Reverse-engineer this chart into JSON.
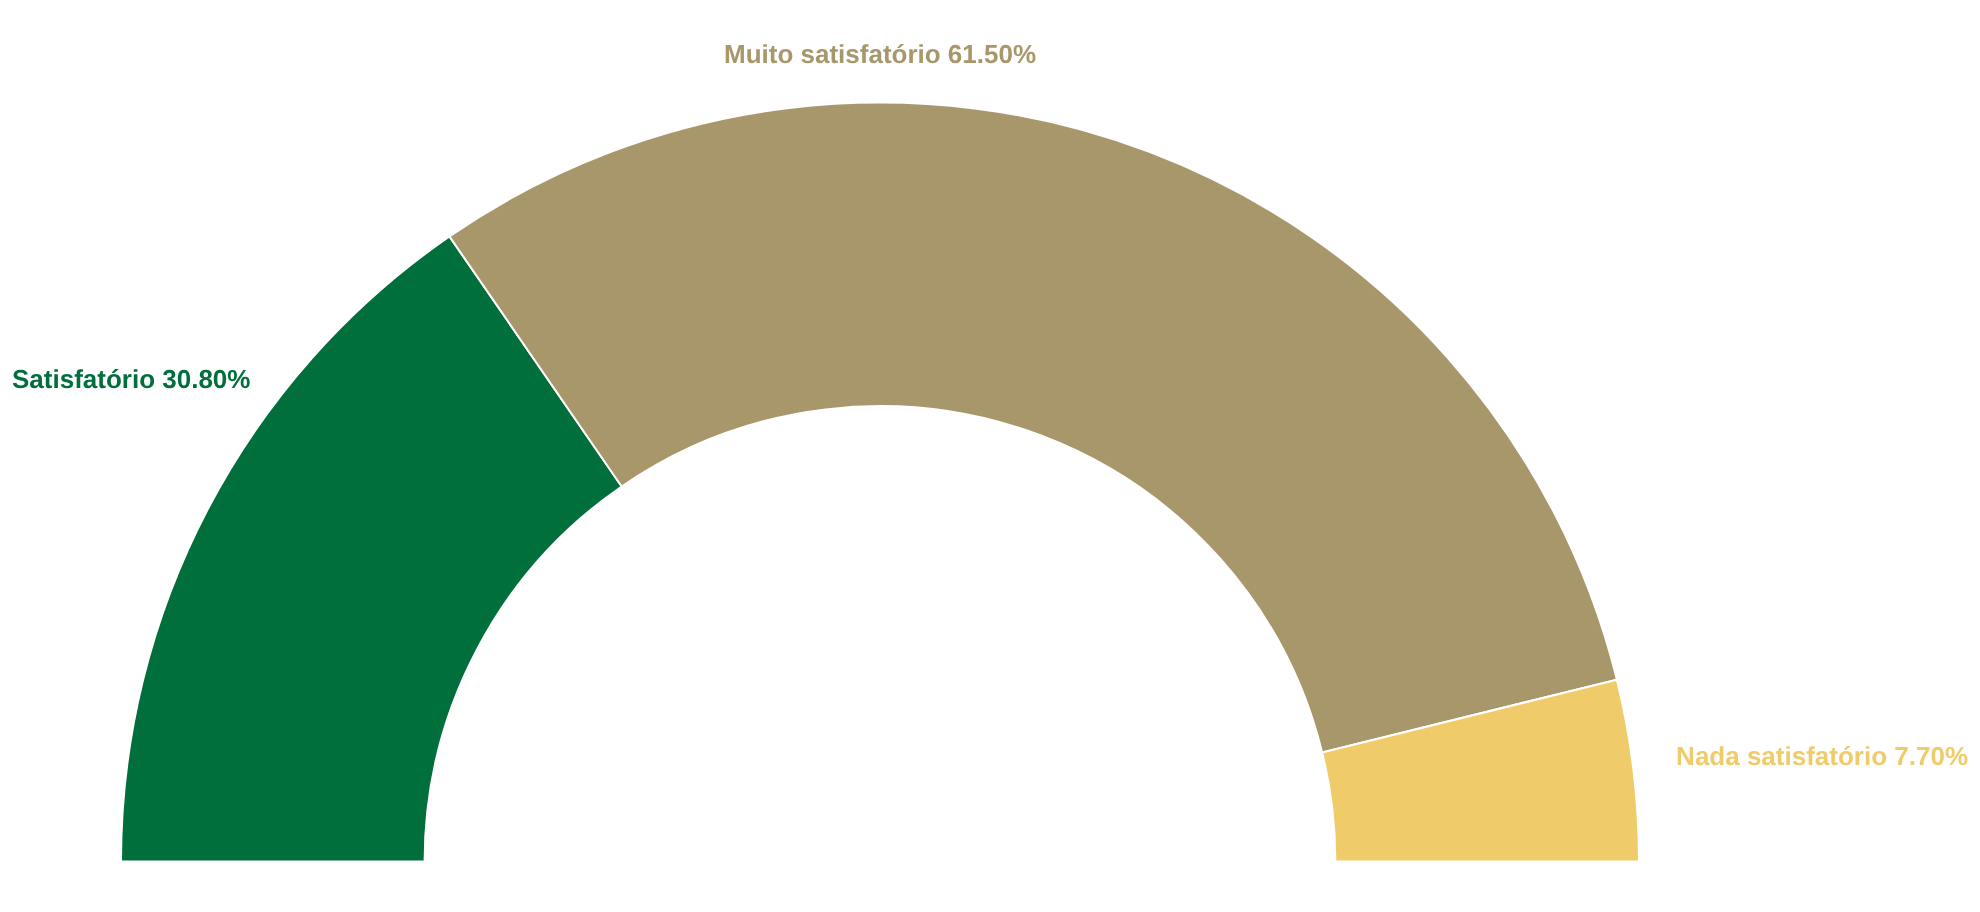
{
  "chart_data": {
    "type": "donut",
    "categories": [
      "Satisfatório",
      "Muito satisfatório",
      "Nada satisfatório"
    ],
    "values": [
      30.8,
      61.5,
      7.7
    ],
    "value_labels": [
      "30.80%",
      "61.50%",
      "7.70%"
    ],
    "colors": [
      "#006f3c",
      "#a8976b",
      "#efcb6a"
    ],
    "legend": false
  }
}
